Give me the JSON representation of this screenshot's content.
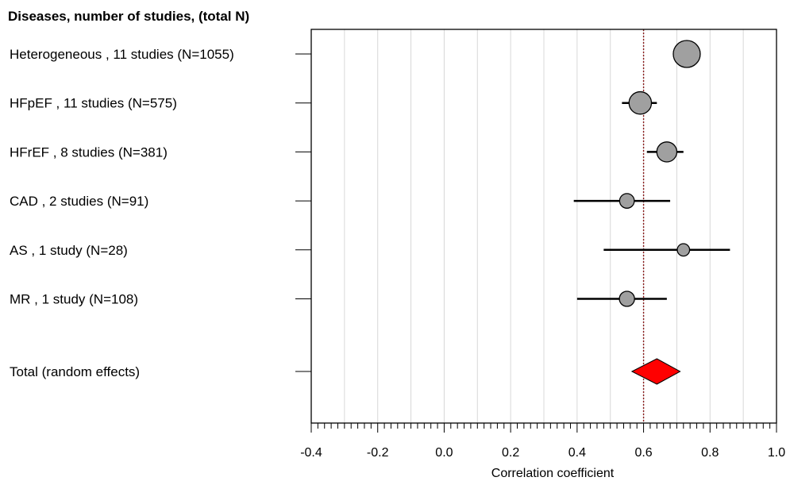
{
  "chart_data": {
    "type": "forest",
    "title": "Diseases, number of studies, (total N)",
    "xlabel": "Correlation coefficient",
    "xlim": [
      -0.4,
      1.0
    ],
    "xticks": [
      "-0.4",
      "-0.2",
      "0.0",
      "0.2",
      "0.4",
      "0.6",
      "0.8",
      "1.0"
    ],
    "xtick_values": [
      -0.4,
      -0.2,
      0.0,
      0.2,
      0.4,
      0.6,
      0.8,
      1.0
    ],
    "minor_tick_step": 0.02,
    "grid": true,
    "reference_line": 0.6,
    "rows": [
      {
        "label": "Heterogeneous , 11 studies (N=1055)",
        "estimate": 0.73,
        "ci_low": 0.71,
        "ci_high": 0.75,
        "n": 1055
      },
      {
        "label": "HFpEF , 11 studies (N=575)",
        "estimate": 0.59,
        "ci_low": 0.535,
        "ci_high": 0.64,
        "n": 575
      },
      {
        "label": "HFrEF , 8 studies (N=381)",
        "estimate": 0.67,
        "ci_low": 0.61,
        "ci_high": 0.72,
        "n": 381
      },
      {
        "label": "CAD , 2 studies (N=91)",
        "estimate": 0.55,
        "ci_low": 0.39,
        "ci_high": 0.68,
        "n": 91
      },
      {
        "label": "AS , 1 study (N=28)",
        "estimate": 0.72,
        "ci_low": 0.48,
        "ci_high": 0.86,
        "n": 28
      },
      {
        "label": "MR , 1 study (N=108)",
        "estimate": 0.55,
        "ci_low": 0.4,
        "ci_high": 0.67,
        "n": 108
      }
    ],
    "total": {
      "label": "Total (random effects)",
      "estimate": 0.64,
      "ci_low": 0.565,
      "ci_high": 0.71
    },
    "colors": {
      "marker_fill": "#a0a0a0",
      "diamond_fill": "#ff0000",
      "reference_line": "#8b1a1a",
      "grid": "#d8d8d8"
    }
  }
}
